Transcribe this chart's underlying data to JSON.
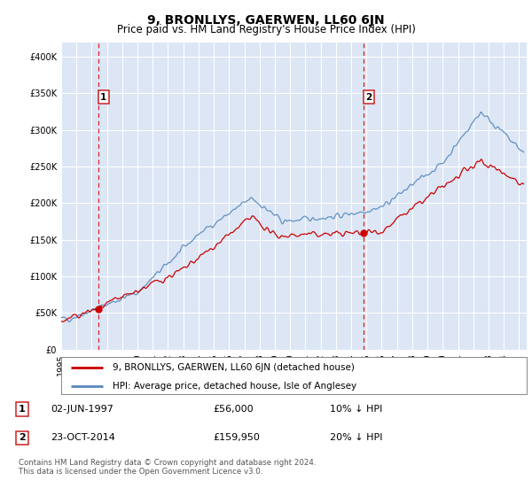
{
  "title": "9, BRONLLYS, GAERWEN, LL60 6JN",
  "subtitle": "Price paid vs. HM Land Registry's House Price Index (HPI)",
  "ylim": [
    0,
    420000
  ],
  "yticks": [
    0,
    50000,
    100000,
    150000,
    200000,
    250000,
    300000,
    350000,
    400000
  ],
  "ytick_labels": [
    "£0",
    "£50K",
    "£100K",
    "£150K",
    "£200K",
    "£250K",
    "£300K",
    "£350K",
    "£400K"
  ],
  "xlim_start": 1995.0,
  "xlim_end": 2025.5,
  "background_color": "#dce6f5",
  "grid_color": "#ffffff",
  "sale1_date": 1997.42,
  "sale1_price": 56000,
  "sale2_date": 2014.81,
  "sale2_price": 159950,
  "vline_color": "#dd2222",
  "red_line_color": "#cc0000",
  "blue_line_color": "#5588bb",
  "legend_sale_label": "9, BRONLLYS, GAERWEN, LL60 6JN (detached house)",
  "legend_hpi_label": "HPI: Average price, detached house, Isle of Anglesey",
  "table_row1": [
    "1",
    "02-JUN-1997",
    "£56,000",
    "10% ↓ HPI"
  ],
  "table_row2": [
    "2",
    "23-OCT-2014",
    "£159,950",
    "20% ↓ HPI"
  ],
  "footer": "Contains HM Land Registry data © Crown copyright and database right 2024.\nThis data is licensed under the Open Government Licence v3.0.",
  "title_fontsize": 10,
  "subtitle_fontsize": 8.5,
  "tick_fontsize": 7
}
